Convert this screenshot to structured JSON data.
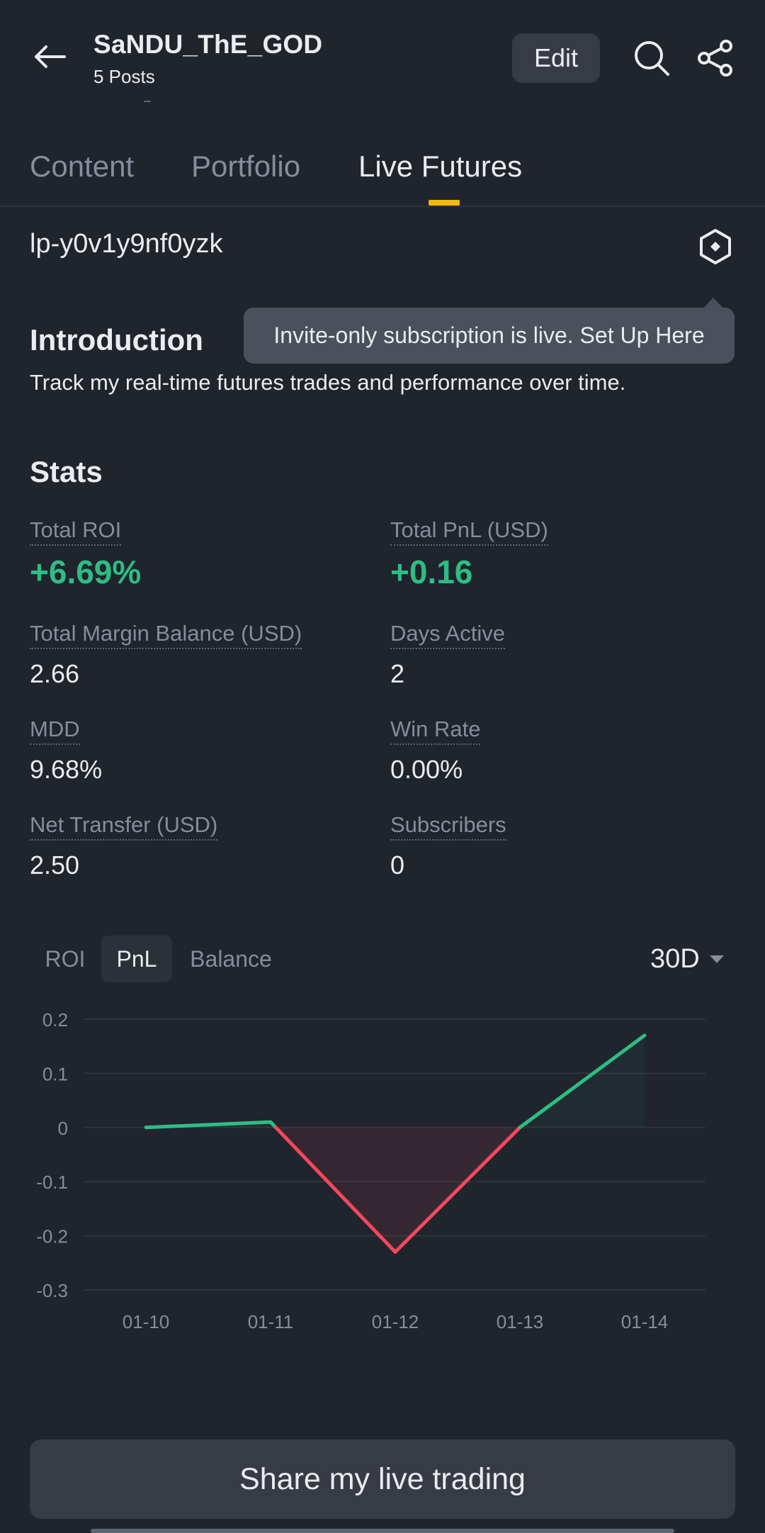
{
  "header": {
    "title": "SaNDU_ThE_GOD",
    "subtitle": "5 Posts",
    "edit_label": "Edit",
    "icons": {
      "back": "arrow-left-icon",
      "search": "search-icon",
      "share": "share-icon"
    }
  },
  "tabs": [
    {
      "label": "Content"
    },
    {
      "label": "Portfolio"
    },
    {
      "label": "Live Futures"
    }
  ],
  "active_tab": "Live Futures",
  "portfolio_id": "lp-y0v1y9nf0yzk",
  "tooltip": "Invite-only subscription is live. Set Up Here",
  "introduction": {
    "heading": "Introduction",
    "text": "Track my real-time futures trades and performance over time."
  },
  "stats": {
    "heading": "Stats",
    "items": [
      {
        "label": "Total ROI",
        "value": "+6.69%"
      },
      {
        "label": "Total PnL (USD)",
        "value": "+0.16"
      },
      {
        "label": "Total Margin Balance (USD)",
        "value": "2.66"
      },
      {
        "label": "Days Active",
        "value": "2"
      },
      {
        "label": "MDD",
        "value": "9.68%"
      },
      {
        "label": "Win Rate",
        "value": "0.00%"
      },
      {
        "label": "Net Transfer (USD)",
        "value": "2.50"
      },
      {
        "label": "Subscribers",
        "value": "0"
      }
    ]
  },
  "chart_controls": {
    "segments": [
      "ROI",
      "PnL",
      "Balance"
    ],
    "active_segment": "PnL",
    "range": "30D"
  },
  "chart_data": {
    "type": "line",
    "categories": [
      "01-10",
      "01-11",
      "01-12",
      "01-13",
      "01-14"
    ],
    "values": [
      0.0,
      0.01,
      -0.23,
      0.0,
      0.17
    ],
    "ylim": [
      -0.3,
      0.2
    ],
    "yticks": [
      "0.2",
      "0.1",
      "0",
      "-0.1",
      "-0.2",
      "-0.3"
    ],
    "grid": true,
    "colors": {
      "positive": "#2ebd85",
      "negative": "#f6465d",
      "grid": "#2e333c",
      "tick": "#848e9c"
    }
  },
  "share_button": "Share my live trading",
  "colors": {
    "background": "#1f242d",
    "accent": "#f0b90b",
    "positive": "#2ebd85",
    "negative": "#f6465d"
  }
}
